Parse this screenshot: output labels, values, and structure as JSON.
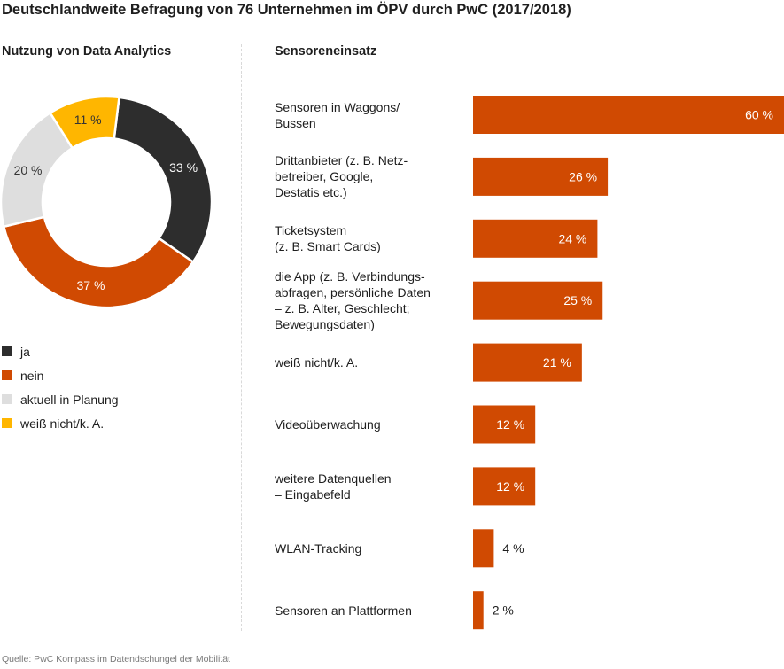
{
  "title": "Deutschlandweite Befragung von 76 Unternehmen im ÖPV durch PwC (2017/2018)",
  "source": "Quelle: PwC Kompass im Datendschungel der Mobilität",
  "colors": {
    "ja": "#2d2d2d",
    "nein": "#d04a02",
    "planung": "#dedede",
    "unknown": "#ffb600",
    "bar": "#d04a02"
  },
  "chart_data": [
    {
      "type": "pie",
      "title": "Nutzung von Data Analytics",
      "donut": true,
      "categories": [
        "ja",
        "nein",
        "aktuell in Planung",
        "weiß nicht/k. A."
      ],
      "values": [
        33,
        37,
        20,
        11
      ],
      "value_labels": [
        "33 %",
        "37 %",
        "20 %",
        "11 %"
      ],
      "legend": "bottom-left"
    },
    {
      "type": "bar",
      "orientation": "horizontal",
      "title": "Sensoreneinsatz",
      "categories": [
        "Sensoren in Waggons/ Bussen",
        "Drittanbieter (z. B. Netzbetreiber, Google, Destatis etc.)",
        "Ticketsystem (z. B. Smart Cards)",
        "die App (z. B. Verbindungsabfragen, persönliche Daten – z. B. Alter, Geschlecht; Bewegungsdaten)",
        "weiß nicht/k. A.",
        "Videoüberwachung",
        "weitere Datenquellen – Eingabefeld",
        "WLAN-Tracking",
        "Sensoren an Plattformen"
      ],
      "label_lines": [
        [
          "Sensoren in Waggons/",
          "Bussen"
        ],
        [
          "Drittanbieter (z. B. Netz-",
          "betreiber, Google,",
          "Destatis etc.)"
        ],
        [
          "Ticketsystem",
          "(z. B. Smart Cards)"
        ],
        [
          "die App (z. B. Verbindungs-",
          "abfragen, persönliche Daten",
          "– z. B. Alter, Geschlecht;",
          "Bewegungsdaten)"
        ],
        [
          "weiß nicht/k. A."
        ],
        [
          "Videoüberwachung"
        ],
        [
          "weitere Datenquellen",
          "– Eingabefeld"
        ],
        [
          "WLAN-Tracking"
        ],
        [
          "Sensoren an Plattformen"
        ]
      ],
      "values": [
        60,
        26,
        24,
        25,
        21,
        12,
        12,
        4,
        2
      ],
      "value_labels": [
        "60 %",
        "26 %",
        "24 %",
        "25 %",
        "21 %",
        "12 %",
        "12 %",
        "4 %",
        "2 %"
      ],
      "xlim": [
        0,
        60
      ],
      "grid": false,
      "unit": "%"
    }
  ]
}
